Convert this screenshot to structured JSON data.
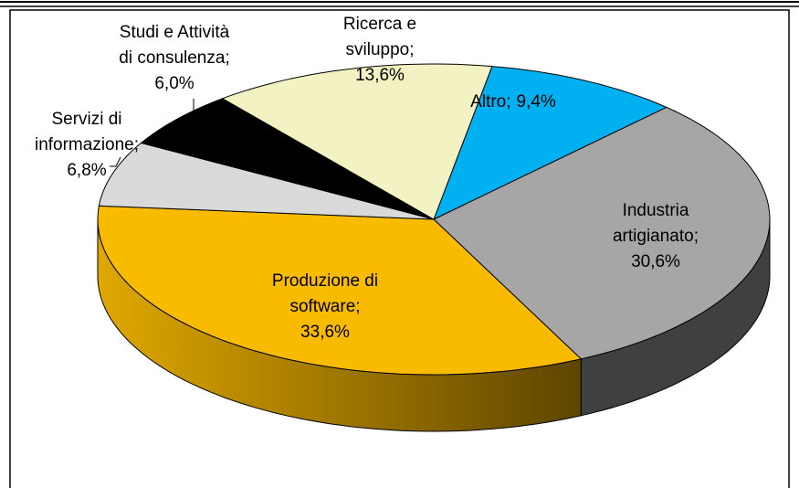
{
  "chart_data": {
    "type": "pie3d",
    "categories": [
      "Altro",
      "Industria artigianato",
      "Produzione di software",
      "Servizi di informazione",
      "Studi e Attività di consulenza",
      "Ricerca e sviluppo"
    ],
    "values": [
      9.4,
      30.6,
      33.6,
      6.8,
      6.0,
      13.6
    ],
    "value_labels": [
      "9,4%",
      "30,6%",
      "33,6%",
      "6,8%",
      "6,0%",
      "13,6%"
    ],
    "label_separator": ";",
    "colors": [
      "#00b0f0",
      "#a6a6a6",
      "#f9bb00",
      "#d9d9d9",
      "#000000",
      "#f2f2c2"
    ]
  }
}
